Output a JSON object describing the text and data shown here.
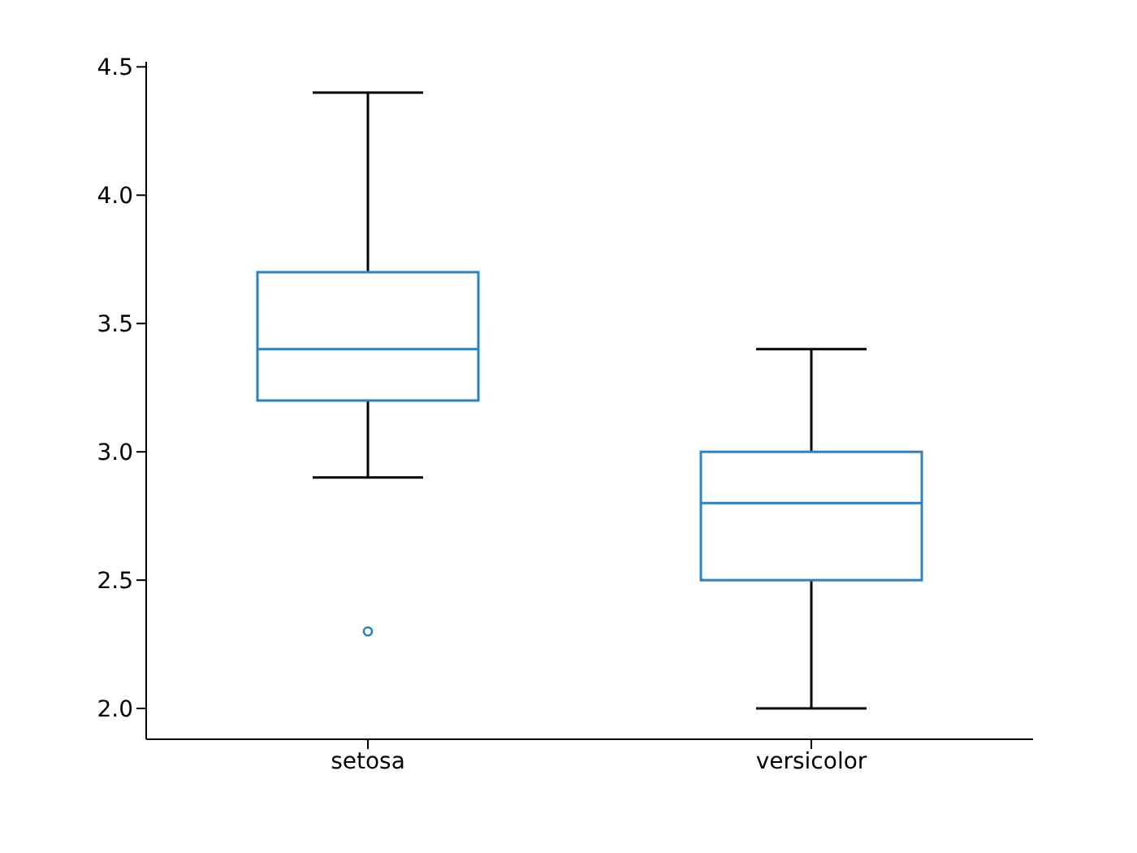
{
  "chart_data": {
    "type": "box",
    "categories": [
      "setosa",
      "versicolor"
    ],
    "series": [
      {
        "color": "#2a82c6",
        "boxes": [
          {
            "low": 2.9,
            "q1": 3.2,
            "median": 3.4,
            "q3": 3.7,
            "high": 4.4,
            "outliers": [
              2.3
            ]
          },
          {
            "low": 2.0,
            "q1": 2.5,
            "median": 2.8,
            "q3": 3.0,
            "high": 3.4
          }
        ]
      }
    ],
    "ylim": [
      1.88,
      4.52
    ],
    "yticks": [
      {
        "value": 2,
        "label": "2.0"
      },
      {
        "value": 2.5,
        "label": "2.5"
      },
      {
        "value": 3,
        "label": "3.0"
      },
      {
        "value": 3.5,
        "label": "3.5"
      },
      {
        "value": 4,
        "label": "4.0"
      },
      {
        "value": 4.5,
        "label": "4.5"
      }
    ],
    "grid": false
  }
}
